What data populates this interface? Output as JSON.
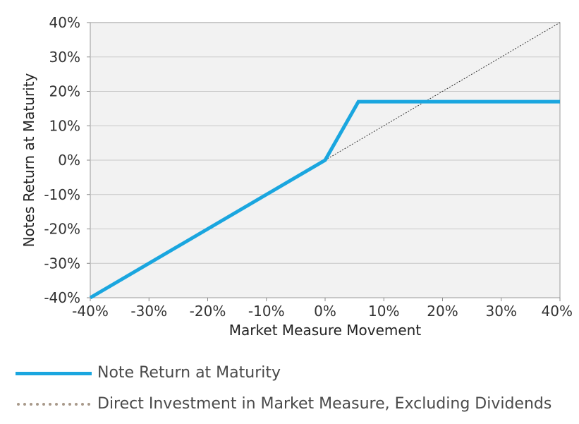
{
  "chart_data": {
    "type": "line",
    "xlabel": "Market Measure Movement",
    "ylabel": "Notes Return at Maturity",
    "xlim": [
      -40,
      40
    ],
    "ylim": [
      -40,
      40
    ],
    "x_ticks": [
      "-40%",
      "-30%",
      "-20%",
      "-10%",
      "0%",
      "10%",
      "20%",
      "30%",
      "40%"
    ],
    "y_ticks": [
      "40%",
      "30%",
      "20%",
      "10%",
      "0%",
      "-10%",
      "-20%",
      "-30%",
      "-40%"
    ],
    "grid": "horizontal",
    "legend_position": "bottom",
    "series": [
      {
        "name": "Note Return at Maturity",
        "color": "#1aa6df",
        "style": "solid",
        "x": [
          -40,
          0,
          5.67,
          40
        ],
        "y": [
          -40,
          0,
          17,
          17
        ]
      },
      {
        "name": "Direct Investment in Market Measure, Excluding Dividends",
        "color": "#333333",
        "style": "dotted",
        "x": [
          0,
          40
        ],
        "y": [
          0,
          40
        ]
      }
    ]
  }
}
